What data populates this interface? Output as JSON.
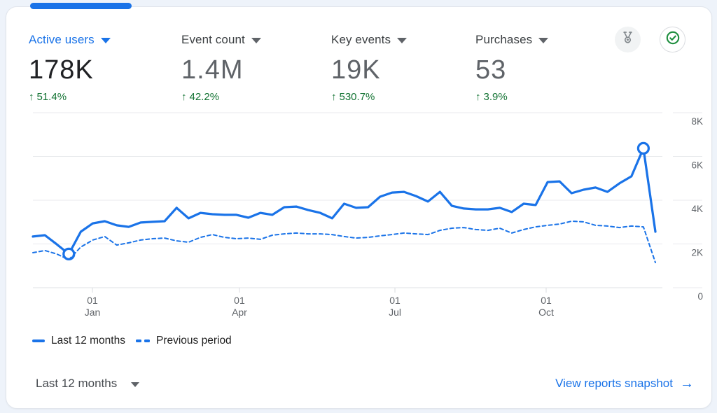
{
  "colors": {
    "accent_blue": "#1a73e8",
    "positive_green": "#137333",
    "check_green": "#1e8e3e",
    "icon_gray": "#80868b",
    "text_dark": "#202124",
    "text_gray": "#5f6368",
    "grid_gray": "#e8eaed",
    "card_bg": "#ffffff",
    "page_bg": "#eef3fa"
  },
  "metrics": [
    {
      "label": "Active users",
      "value": "178K",
      "arrow": "↑",
      "delta": "51.4%",
      "active": true
    },
    {
      "label": "Event count",
      "value": "1.4M",
      "arrow": "↑",
      "delta": "42.2%",
      "active": false
    },
    {
      "label": "Key events",
      "value": "19K",
      "arrow": "↑",
      "delta": "530.7%",
      "active": false
    },
    {
      "label": "Purchases",
      "value": "53",
      "arrow": "↑",
      "delta": "3.9%",
      "active": false
    }
  ],
  "legend": [
    {
      "label": "Last 12 months",
      "style": "solid"
    },
    {
      "label": "Previous period",
      "style": "dashed"
    }
  ],
  "footer": {
    "range_label": "Last 12 months",
    "link_label": "View reports snapshot",
    "link_arrow": "→"
  },
  "chart_data": {
    "type": "line",
    "unit": "active users per week",
    "ylim": [
      0,
      8000
    ],
    "grid": true,
    "legend_position": "bottom-left",
    "yticks": [
      {
        "v": 0,
        "label": "0"
      },
      {
        "v": 2000,
        "label": "2K"
      },
      {
        "v": 4000,
        "label": "4K"
      },
      {
        "v": 6000,
        "label": "6K"
      },
      {
        "v": 8000,
        "label": "8K"
      }
    ],
    "xticks": [
      {
        "frac": 0.0956,
        "line1": "01",
        "line2": "Jan"
      },
      {
        "frac": 0.3318,
        "line1": "01",
        "line2": "Apr"
      },
      {
        "frac": 0.5816,
        "line1": "01",
        "line2": "Jul"
      },
      {
        "frac": 0.8245,
        "line1": "01",
        "line2": "Oct"
      }
    ],
    "series": [
      {
        "name": "Last 12 months",
        "style": "solid",
        "color": "#1a73e8",
        "markers": [
          3,
          51
        ],
        "values": [
          2340,
          2400,
          1980,
          1540,
          2560,
          2940,
          3040,
          2850,
          2780,
          2980,
          3010,
          3040,
          3650,
          3170,
          3420,
          3360,
          3330,
          3330,
          3200,
          3420,
          3330,
          3680,
          3710,
          3550,
          3420,
          3170,
          3840,
          3650,
          3680,
          4160,
          4350,
          4380,
          4190,
          3940,
          4380,
          3740,
          3620,
          3580,
          3580,
          3650,
          3460,
          3840,
          3780,
          4830,
          4860,
          4320,
          4480,
          4580,
          4380,
          4770,
          5090,
          6370,
          2560
        ]
      },
      {
        "name": "Previous period",
        "style": "dashed",
        "color": "#1a73e8",
        "markers": [],
        "values": [
          1600,
          1700,
          1540,
          1280,
          1860,
          2180,
          2340,
          1950,
          2050,
          2180,
          2240,
          2270,
          2140,
          2080,
          2300,
          2430,
          2300,
          2240,
          2270,
          2210,
          2400,
          2460,
          2500,
          2460,
          2460,
          2430,
          2340,
          2270,
          2300,
          2370,
          2430,
          2500,
          2460,
          2430,
          2620,
          2720,
          2750,
          2660,
          2620,
          2720,
          2500,
          2660,
          2780,
          2850,
          2910,
          3040,
          3010,
          2850,
          2820,
          2750,
          2820,
          2780,
          1150
        ]
      }
    ]
  }
}
